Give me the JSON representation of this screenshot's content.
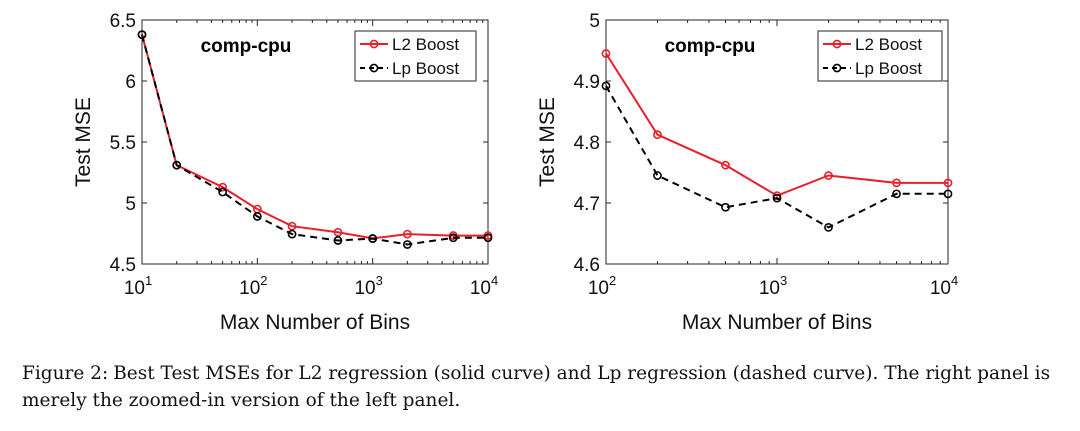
{
  "caption": {
    "label": "Figure 2:",
    "text": "Best Test MSEs for L2 regression (solid curve) and Lp regression (dashed curve). The right panel is merely the zoomed-in version of the left panel."
  },
  "chart_data": [
    {
      "type": "line",
      "title": "comp-cpu",
      "xlabel": "Max Number of Bins",
      "ylabel": "Test MSE",
      "xscale": "log",
      "xlim": [
        10,
        10000
      ],
      "ylim": [
        4.5,
        6.5
      ],
      "xticks": [
        10,
        100,
        1000,
        10000
      ],
      "xtick_labels": [
        {
          "base": "10",
          "exp": "1"
        },
        {
          "base": "10",
          "exp": "2"
        },
        {
          "base": "10",
          "exp": "3"
        },
        {
          "base": "10",
          "exp": "4"
        }
      ],
      "yticks": [
        4.5,
        5,
        5.5,
        6,
        6.5
      ],
      "ytick_labels": [
        "4.5",
        "5",
        "5.5",
        "6",
        "6.5"
      ],
      "grid": false,
      "legend_position": "top-right",
      "x": [
        10,
        20,
        50,
        100,
        200,
        500,
        1000,
        2000,
        5000,
        10000
      ],
      "series": [
        {
          "name": "L2 Boost",
          "color": "#e8202a",
          "style": "solid",
          "marker": "circle",
          "values": [
            6.38,
            5.31,
            5.13,
            4.95,
            4.81,
            4.76,
            4.71,
            4.745,
            4.733,
            4.733
          ]
        },
        {
          "name": "Lp Boost",
          "color": "#000000",
          "style": "dashed",
          "marker": "circle",
          "values": [
            6.38,
            5.31,
            5.09,
            4.89,
            4.745,
            4.693,
            4.708,
            4.66,
            4.715,
            4.715
          ]
        }
      ]
    },
    {
      "type": "line",
      "title": "comp-cpu",
      "xlabel": "Max Number of Bins",
      "ylabel": "Test MSE",
      "xscale": "log",
      "xlim": [
        100,
        10000
      ],
      "ylim": [
        4.6,
        5.0
      ],
      "xticks": [
        100,
        1000,
        10000
      ],
      "xtick_labels": [
        {
          "base": "10",
          "exp": "2"
        },
        {
          "base": "10",
          "exp": "3"
        },
        {
          "base": "10",
          "exp": "4"
        }
      ],
      "yticks": [
        4.6,
        4.7,
        4.8,
        4.9,
        5.0
      ],
      "ytick_labels": [
        "4.6",
        "4.7",
        "4.8",
        "4.9",
        "5"
      ],
      "grid": false,
      "legend_position": "top-right",
      "x": [
        100,
        200,
        500,
        1000,
        2000,
        5000,
        10000
      ],
      "series": [
        {
          "name": "L2 Boost",
          "color": "#e8202a",
          "style": "solid",
          "marker": "circle",
          "values": [
            4.945,
            4.812,
            4.762,
            4.712,
            4.745,
            4.733,
            4.733
          ]
        },
        {
          "name": "Lp Boost",
          "color": "#000000",
          "style": "dashed",
          "marker": "circle",
          "values": [
            4.892,
            4.745,
            4.693,
            4.708,
            4.66,
            4.715,
            4.715
          ]
        }
      ]
    }
  ]
}
